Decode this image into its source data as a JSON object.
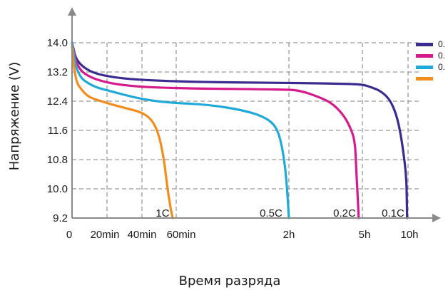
{
  "chart_data": {
    "type": "line",
    "title": "",
    "xlabel": "Время разряда",
    "ylabel": "Напряжение (V)",
    "ylim": [
      9.2,
      14.0
    ],
    "y_ticks": [
      "14.0",
      "13.2",
      "12.4",
      "11.6",
      "10.8",
      "10.0",
      "9.2"
    ],
    "y_tick_values": [
      14.0,
      13.2,
      12.4,
      11.6,
      10.8,
      10.0,
      9.2
    ],
    "x_ticks": [
      "0",
      "20min",
      "40min",
      "60min",
      "2h",
      "5h",
      "10h"
    ],
    "grid": true,
    "legend_position": "top-right",
    "annotations": [
      "1C",
      "0.5C",
      "0.2C",
      "0.1C"
    ],
    "series": [
      {
        "name": "0.",
        "color": "#3b2a8f",
        "x_unit": "h",
        "points": [
          [
            0,
            14.0
          ],
          [
            0.05,
            13.4
          ],
          [
            0.3,
            13.05
          ],
          [
            1,
            12.93
          ],
          [
            2,
            12.9
          ],
          [
            3,
            12.89
          ],
          [
            4,
            12.88
          ],
          [
            5,
            12.86
          ],
          [
            6,
            12.78
          ],
          [
            7,
            12.68
          ],
          [
            8,
            12.45
          ],
          [
            8.7,
            12.05
          ],
          [
            9.2,
            11.5
          ],
          [
            9.6,
            10.8
          ],
          [
            9.8,
            10.3
          ],
          [
            9.85,
            9.9
          ],
          [
            9.9,
            9.2
          ]
        ]
      },
      {
        "name": "0.",
        "color": "#d6198c",
        "x_unit": "h",
        "points": [
          [
            0,
            14.0
          ],
          [
            0.05,
            13.3
          ],
          [
            0.2,
            13.0
          ],
          [
            0.5,
            12.82
          ],
          [
            1,
            12.75
          ],
          [
            2,
            12.72
          ],
          [
            2.5,
            12.68
          ],
          [
            3,
            12.57
          ],
          [
            3.7,
            12.38
          ],
          [
            4.2,
            12.05
          ],
          [
            4.5,
            11.7
          ],
          [
            4.7,
            11.3
          ],
          [
            4.75,
            10.5
          ],
          [
            4.8,
            9.9
          ],
          [
            4.85,
            9.2
          ]
        ]
      },
      {
        "name": "0.",
        "color": "#1ea9d9",
        "x_unit": "h",
        "points": [
          [
            0,
            14.0
          ],
          [
            0.05,
            13.1
          ],
          [
            0.2,
            12.8
          ],
          [
            0.4,
            12.65
          ],
          [
            0.6,
            12.5
          ],
          [
            0.8,
            12.4
          ],
          [
            1,
            12.35
          ],
          [
            1.3,
            12.3
          ],
          [
            1.6,
            12.15
          ],
          [
            1.8,
            11.95
          ],
          [
            1.9,
            11.65
          ],
          [
            1.95,
            11.0
          ],
          [
            1.98,
            10.2
          ],
          [
            2.0,
            9.2
          ]
        ]
      },
      {
        "name": "",
        "color": "#f28c1c",
        "x_unit": "min",
        "points": [
          [
            0,
            13.9
          ],
          [
            2,
            12.95
          ],
          [
            6,
            12.68
          ],
          [
            10,
            12.5
          ],
          [
            20,
            12.35
          ],
          [
            30,
            12.22
          ],
          [
            40,
            12.1
          ],
          [
            46,
            11.9
          ],
          [
            50,
            11.5
          ],
          [
            53,
            10.8
          ],
          [
            55,
            10.0
          ],
          [
            57,
            9.4
          ],
          [
            58,
            9.2
          ]
        ]
      }
    ]
  }
}
